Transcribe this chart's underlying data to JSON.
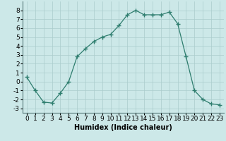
{
  "x": [
    0,
    1,
    2,
    3,
    4,
    5,
    6,
    7,
    8,
    9,
    10,
    11,
    12,
    13,
    14,
    15,
    16,
    17,
    18,
    19,
    20,
    21,
    22,
    23
  ],
  "y": [
    0.5,
    -1.0,
    -2.3,
    -2.4,
    -1.3,
    0.0,
    2.8,
    3.7,
    4.5,
    5.0,
    5.3,
    6.3,
    7.5,
    8.0,
    7.5,
    7.5,
    7.5,
    7.8,
    6.5,
    2.8,
    -1.0,
    -2.0,
    -2.5,
    -2.6
  ],
  "line_color": "#2e7d6e",
  "marker": "+",
  "marker_size": 4,
  "bg_color": "#cce8e8",
  "grid_color": "#aacccc",
  "xlabel": "Humidex (Indice chaleur)",
  "xlabel_fontsize": 7,
  "tick_fontsize": 6.5,
  "ylim": [
    -3.5,
    9.0
  ],
  "xlim": [
    -0.5,
    23.5
  ],
  "yticks": [
    -3,
    -2,
    -1,
    0,
    1,
    2,
    3,
    4,
    5,
    6,
    7,
    8
  ],
  "xticks": [
    0,
    1,
    2,
    3,
    4,
    5,
    6,
    7,
    8,
    9,
    10,
    11,
    12,
    13,
    14,
    15,
    16,
    17,
    18,
    19,
    20,
    21,
    22,
    23
  ]
}
